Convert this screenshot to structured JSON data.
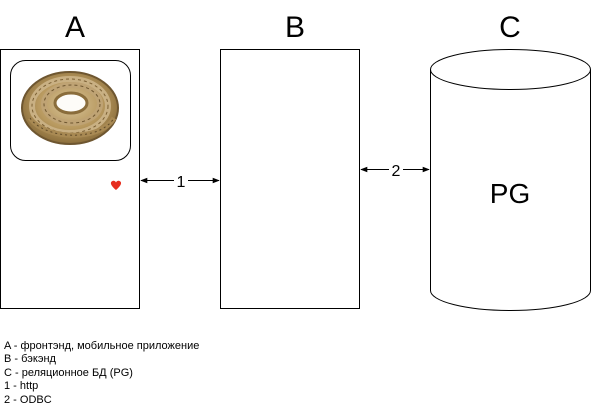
{
  "nodes": {
    "a": {
      "label": "A"
    },
    "b": {
      "label": "B"
    },
    "c": {
      "label": "C",
      "inner_label": "PG"
    }
  },
  "edges": [
    {
      "label": "1",
      "from": "A",
      "to": "B"
    },
    {
      "label": "2",
      "from": "B",
      "to": "C"
    }
  ],
  "legend": [
    "A - фронтэнд, мобильное приложение",
    "B - бэкэнд",
    "C - реляционное БД (PG)",
    "1 - http",
    "2 - ODBC"
  ],
  "icons": {
    "image": "rope-image",
    "favorite": "heart-icon"
  },
  "colors": {
    "heart": "#e62e1f",
    "stroke": "#000000"
  }
}
